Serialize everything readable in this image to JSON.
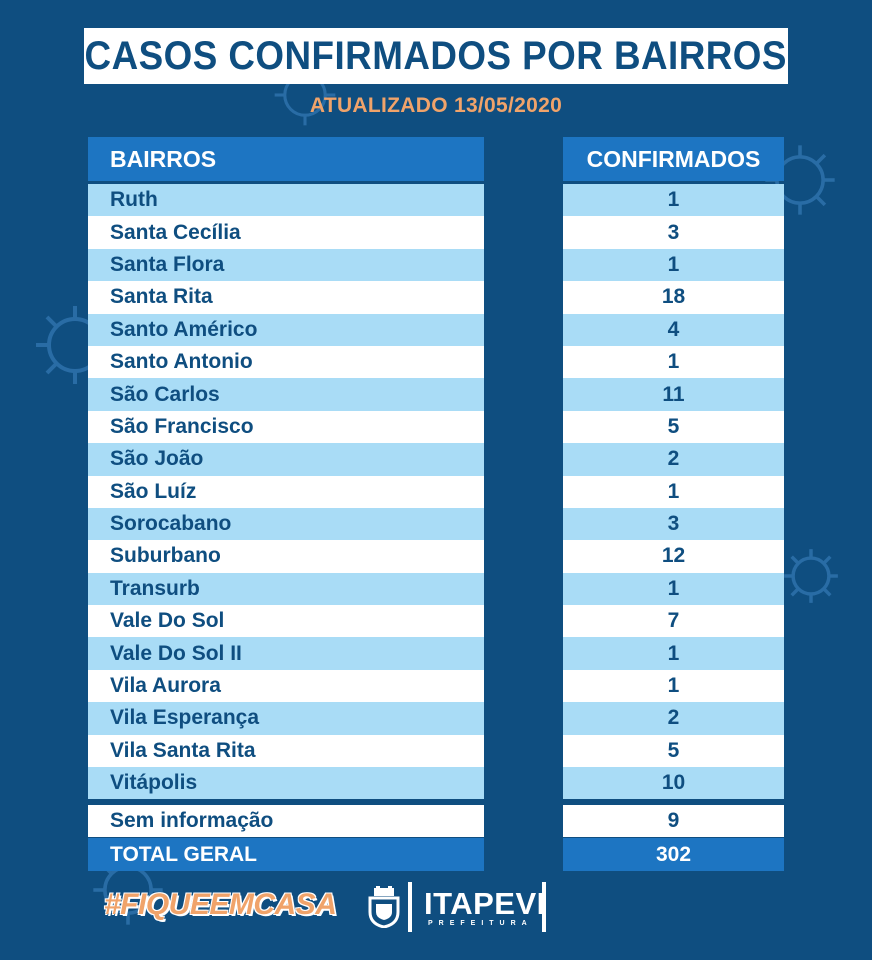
{
  "title": "CASOS CONFIRMADOS POR BAIRROS",
  "subtitle": "ATUALIZADO 13/05/2020",
  "table": {
    "header_left": "BAIRROS",
    "header_right": "CONFIRMADOS",
    "rows": [
      {
        "bairro": "Ruth",
        "confirmados": "1"
      },
      {
        "bairro": "Santa Cecília",
        "confirmados": "3"
      },
      {
        "bairro": "Santa Flora",
        "confirmados": "1"
      },
      {
        "bairro": "Santa Rita",
        "confirmados": "18"
      },
      {
        "bairro": "Santo Américo",
        "confirmados": "4"
      },
      {
        "bairro": "Santo Antonio",
        "confirmados": "1"
      },
      {
        "bairro": "São Carlos",
        "confirmados": "11"
      },
      {
        "bairro": "São Francisco",
        "confirmados": "5"
      },
      {
        "bairro": "São João",
        "confirmados": "2"
      },
      {
        "bairro": "São Luíz",
        "confirmados": "1"
      },
      {
        "bairro": "Sorocabano",
        "confirmados": "3"
      },
      {
        "bairro": "Suburbano",
        "confirmados": "12"
      },
      {
        "bairro": "Transurb",
        "confirmados": "1"
      },
      {
        "bairro": "Vale Do Sol",
        "confirmados": "7"
      },
      {
        "bairro": "Vale Do Sol II",
        "confirmados": "1"
      },
      {
        "bairro": "Vila Aurora",
        "confirmados": "1"
      },
      {
        "bairro": "Vila Esperança",
        "confirmados": "2"
      },
      {
        "bairro": "Vila Santa Rita",
        "confirmados": "5"
      },
      {
        "bairro": "Vitápolis",
        "confirmados": "10"
      }
    ],
    "sem_informacao": {
      "label": "Sem informação",
      "value": "9"
    },
    "total": {
      "label": "TOTAL GERAL",
      "value": "302"
    }
  },
  "footer": {
    "hashtag": "#FIQUEEMCASA",
    "brand": "ITAPEVI",
    "brand_sub": "PREFEITURA",
    "crest_icon": "city-crest-icon"
  },
  "colors": {
    "background": "#0f4e80",
    "header_blue": "#1d75c2",
    "light_row": "#a9dcf6",
    "accent_orange": "#f0a36a"
  }
}
